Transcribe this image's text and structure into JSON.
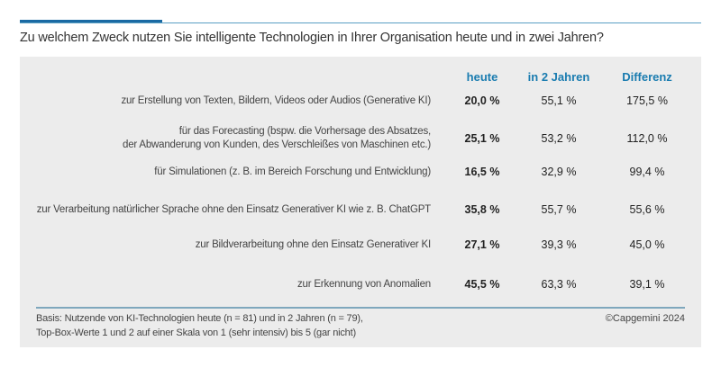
{
  "title": "Zu welchem Zweck nutzen Sie intelligente Technologien in Ihrer Organisation heute und in zwei Jahren?",
  "colors": {
    "accent": "#1a6aa3",
    "header": "#1a7cb0",
    "panel": "#ececec"
  },
  "chart_data": {
    "type": "table",
    "title": "Zu welchem Zweck nutzen Sie intelligente Technologien in Ihrer Organisation heute und in zwei Jahren?",
    "columns": [
      "heute",
      "in 2 Jahren",
      "Differenz"
    ],
    "rows": [
      {
        "label": [
          "zur Erstellung von Texten, Bildern, Videos oder Audios (Generative KI)"
        ],
        "values": [
          "20,0 %",
          "55,1 %",
          "175,5 %"
        ]
      },
      {
        "label": [
          "für das Forecasting (bspw. die Vorhersage des Absatzes,",
          "der Abwanderung von Kunden, des Verschleißes von Maschinen etc.)"
        ],
        "values": [
          "25,1 %",
          "53,2 %",
          "112,0 %"
        ]
      },
      {
        "label": [
          "für Simulationen (z. B. im Bereich Forschung und Entwicklung)"
        ],
        "values": [
          "16,5 %",
          "32,9 %",
          "99,4 %"
        ]
      },
      {
        "label": [
          "zur Verarbeitung natürlicher Sprache ohne den Einsatz Generativer KI wie z. B. ChatGPT"
        ],
        "values": [
          "35,8 %",
          "55,7 %",
          "55,6 %"
        ]
      },
      {
        "label": [
          "zur Bildverarbeitung ohne den Einsatz Generativer KI"
        ],
        "values": [
          "27,1 %",
          "39,3 %",
          "45,0 %"
        ]
      },
      {
        "label": [
          "zur Erkennung von Anomalien"
        ],
        "values": [
          "45,5 %",
          "63,3 %",
          "39,1 %"
        ]
      }
    ]
  },
  "footer": {
    "basis": [
      "Basis: Nutzende von KI-Technologien heute (n = 81) und in 2 Jahren (n = 79),",
      "Top-Box-Werte 1 und 2 auf einer Skala von 1 (sehr intensiv) bis 5 (gar nicht)"
    ],
    "copyright": "©Capgemini 2024"
  }
}
